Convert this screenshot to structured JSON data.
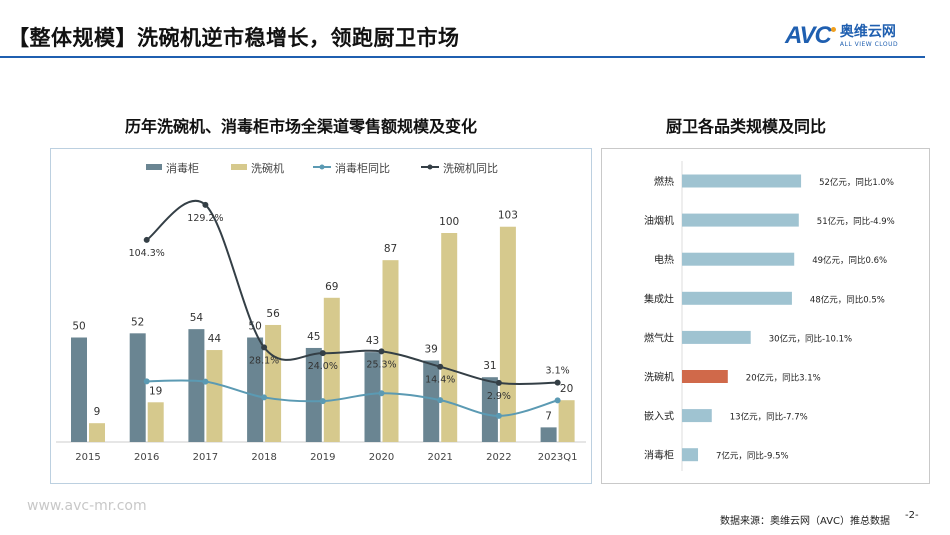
{
  "header": {
    "title": "【整体规模】洗碗机逆市稳增长，领跑厨卫市场",
    "logo_text": "AVC",
    "logo_cn": "奥维云网",
    "logo_en": "ALL VIEW CLOUD",
    "accent": "#1f5fb0"
  },
  "footer": {
    "website": "www.avc-mr.com",
    "source": "数据来源：奥维云网（AVC）推总数据",
    "page": "-2-"
  },
  "chart_data": [
    {
      "type": "bar",
      "title": "历年洗碗机、消毒柜市场全渠道零售额规模及变化",
      "categories": [
        "2015",
        "2016",
        "2017",
        "2018",
        "2019",
        "2020",
        "2021",
        "2022",
        "2023Q1"
      ],
      "legend_position": "top",
      "grid": false,
      "series": [
        {
          "name": "消毒柜",
          "kind": "bar",
          "color": "#6a8592",
          "values": [
            50,
            52,
            54,
            50,
            45,
            43,
            39,
            31,
            7
          ]
        },
        {
          "name": "洗碗机",
          "kind": "bar",
          "color": "#d6c98d",
          "values": [
            9,
            19,
            44,
            56,
            69,
            87,
            100,
            103,
            20
          ]
        },
        {
          "name": "消毒柜同比",
          "kind": "line",
          "color": "#5b9ab3",
          "values": [
            null,
            4.0,
            3.8,
            -7.4,
            -10.0,
            -4.4,
            -9.3,
            -20.5,
            -9.5
          ]
        },
        {
          "name": "洗碗机同比",
          "kind": "line",
          "color": "#343f46",
          "values": [
            null,
            104.3,
            129.2,
            28.1,
            24.0,
            25.3,
            14.4,
            2.9,
            3.1
          ],
          "labels": [
            "",
            "104.3%",
            "129.2%",
            "28.1%",
            "24.0%",
            "25.3%",
            "14.4%",
            "2.9%",
            "3.1%"
          ]
        }
      ]
    },
    {
      "type": "bar",
      "orientation": "horizontal",
      "title": "厨卫各品类规模及同比",
      "categories": [
        "燃热",
        "油烟机",
        "电热",
        "集成灶",
        "燃气灶",
        "洗碗机",
        "嵌入式",
        "消毒柜"
      ],
      "values": [
        52,
        51,
        49,
        48,
        30,
        20,
        13,
        7
      ],
      "labels": [
        "52亿元，同比1.0%",
        "51亿元，同比-4.9%",
        "49亿元，同比0.6%",
        "48亿元，同比0.5%",
        "30亿元，同比-10.1%",
        "20亿元，同比3.1%",
        "13亿元，同比-7.7%",
        "7亿元，同比-9.5%"
      ],
      "color": "#9fc3d1",
      "highlight": {
        "category": "洗碗机",
        "color": "#d0694a"
      }
    }
  ]
}
